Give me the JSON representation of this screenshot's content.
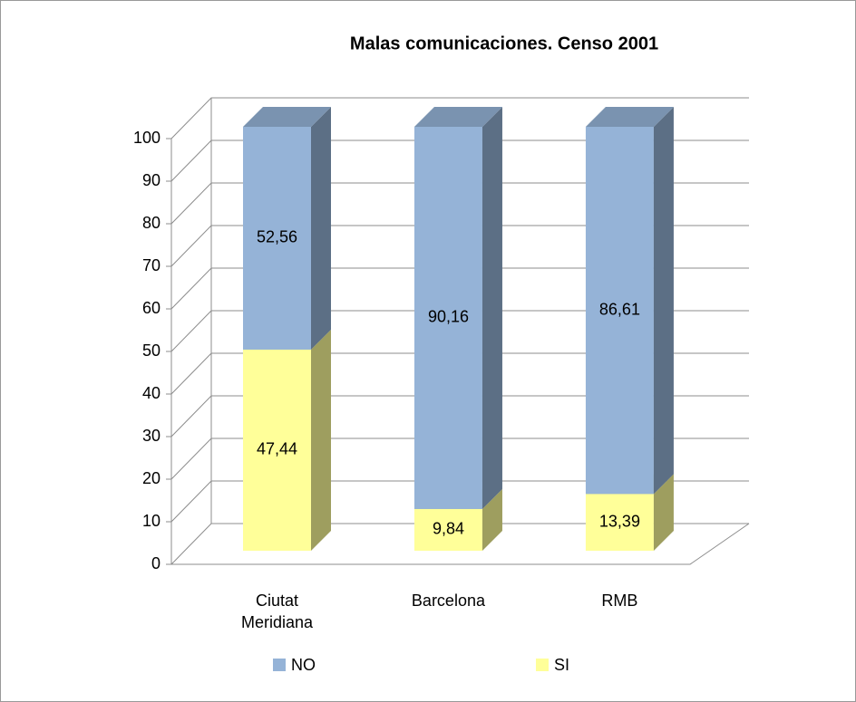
{
  "chart_data": {
    "type": "bar3d_stacked",
    "title": "Malas comunicaciones. Censo 2001",
    "categories": [
      "Ciutat Meridiana",
      "Barcelona",
      "RMB"
    ],
    "series": [
      {
        "name": "NO",
        "color": "#95b3d7",
        "values": [
          52.56,
          90.16,
          86.61
        ],
        "value_labels": [
          "52,56",
          "90,16",
          "86,61"
        ]
      },
      {
        "name": "SI",
        "color": "#ffff99",
        "values": [
          47.44,
          9.84,
          13.39
        ],
        "value_labels": [
          "47,44",
          "9,84",
          "13,39"
        ]
      }
    ],
    "ylim": [
      0,
      100
    ],
    "yticks": [
      0,
      10,
      20,
      30,
      40,
      50,
      60,
      70,
      80,
      90,
      100
    ],
    "grid": true,
    "legend": "bottom"
  }
}
